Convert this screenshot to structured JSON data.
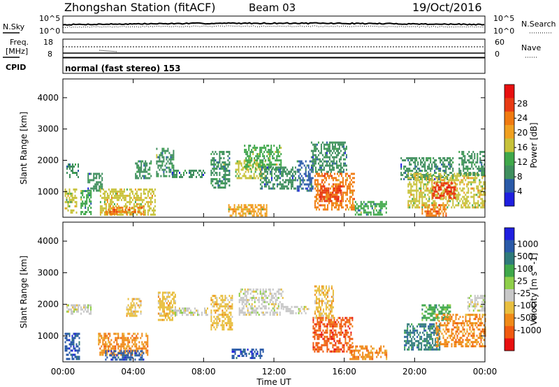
{
  "header": {
    "station": "Zhongshan Station (fitACF)",
    "beam": "Beam 03",
    "date": "19/Oct/2016"
  },
  "noise_panel": {
    "left_label": "N.Sky",
    "right_label": "N.Search",
    "left_ticks": [
      "10^5",
      "10^0"
    ],
    "right_ticks": [
      "10^5",
      "10^0"
    ]
  },
  "freq_panel": {
    "left_label_1": "Freq.",
    "left_label_2": "[MHz]",
    "left_ticks": [
      "18",
      "8"
    ],
    "right_label": "Nave",
    "right_ticks": [
      "60",
      "0"
    ]
  },
  "cpid_panel": {
    "label": "CPID",
    "mode_text": "normal (fast stereo) 153"
  },
  "colors": {
    "power": [
      "#1f1fe0",
      "#2a5aa8",
      "#3f8f5e",
      "#3fa84a",
      "#c7c23a",
      "#f0a020",
      "#f07a10",
      "#e83a14",
      "#e81010"
    ],
    "velocity": [
      "#e81010",
      "#f05a10",
      "#f08a18",
      "#e8bf40",
      "#c8c8c8",
      "#8fcf4a",
      "#3fa84a",
      "#2f7a7a",
      "#2a5aa8",
      "#1f1fe0"
    ]
  },
  "chart_data": [
    {
      "type": "heatmap",
      "title": "Power",
      "xlabel": "Time UT",
      "ylabel": "Slant Range [km]",
      "colorbar_label": "Power [dB]",
      "x_ticks": [
        "00:00",
        "04:00",
        "08:00",
        "12:00",
        "16:00",
        "20:00",
        "00:00"
      ],
      "y_ticks": [
        1000,
        2000,
        3000,
        4000
      ],
      "colorbar_ticks": [
        4,
        8,
        12,
        16,
        20,
        24,
        28
      ],
      "xlim_hours": [
        0,
        24
      ],
      "ylim_km": [
        180,
        4600
      ],
      "clim": [
        0,
        30
      ],
      "regions": [
        {
          "t0": 0.1,
          "t1": 0.8,
          "r0": 300,
          "r1": 1100,
          "v": 14
        },
        {
          "t0": 0.2,
          "t1": 0.9,
          "r0": 1450,
          "r1": 1900,
          "v": 8
        },
        {
          "t0": 1.0,
          "t1": 1.6,
          "r0": 280,
          "r1": 1050,
          "v": 10
        },
        {
          "t0": 1.4,
          "t1": 2.2,
          "r0": 1000,
          "r1": 1600,
          "v": 7
        },
        {
          "t0": 2.1,
          "t1": 5.2,
          "r0": 260,
          "r1": 1100,
          "v": 16
        },
        {
          "t0": 2.4,
          "t1": 4.6,
          "r0": 260,
          "r1": 520,
          "v": 22
        },
        {
          "t0": 4.1,
          "t1": 5.0,
          "r0": 1450,
          "r1": 2000,
          "v": 9
        },
        {
          "t0": 5.3,
          "t1": 6.3,
          "r0": 1500,
          "r1": 2400,
          "v": 9
        },
        {
          "t0": 6.2,
          "t1": 8.1,
          "r0": 1450,
          "r1": 1700,
          "v": 7
        },
        {
          "t0": 8.4,
          "t1": 9.5,
          "r0": 1100,
          "r1": 2300,
          "v": 9
        },
        {
          "t0": 9.4,
          "t1": 11.6,
          "r0": 250,
          "r1": 600,
          "v": 17
        },
        {
          "t0": 9.8,
          "t1": 11.5,
          "r0": 1450,
          "r1": 2000,
          "v": 14
        },
        {
          "t0": 10.3,
          "t1": 12.4,
          "r0": 1700,
          "r1": 2500,
          "v": 12
        },
        {
          "t0": 11.2,
          "t1": 13.2,
          "r0": 1100,
          "r1": 1800,
          "v": 7
        },
        {
          "t0": 13.3,
          "t1": 14.2,
          "r0": 1000,
          "r1": 2000,
          "v": 6
        },
        {
          "t0": 14.1,
          "t1": 16.1,
          "r0": 1600,
          "r1": 2600,
          "v": 8
        },
        {
          "t0": 14.3,
          "t1": 16.6,
          "r0": 400,
          "r1": 1600,
          "v": 20
        },
        {
          "t0": 14.6,
          "t1": 15.8,
          "r0": 700,
          "r1": 1200,
          "v": 26
        },
        {
          "t0": 16.6,
          "t1": 18.4,
          "r0": 250,
          "r1": 700,
          "v": 10
        },
        {
          "t0": 19.2,
          "t1": 22.2,
          "r0": 1400,
          "r1": 2100,
          "v": 8
        },
        {
          "t0": 19.6,
          "t1": 24.0,
          "r0": 500,
          "r1": 1600,
          "v": 16
        },
        {
          "t0": 21.0,
          "t1": 22.3,
          "r0": 800,
          "r1": 1300,
          "v": 26
        },
        {
          "t0": 22.5,
          "t1": 24.0,
          "r0": 1500,
          "r1": 2300,
          "v": 9
        },
        {
          "t0": 20.4,
          "t1": 21.8,
          "r0": 200,
          "r1": 600,
          "v": 22
        }
      ]
    },
    {
      "type": "heatmap",
      "title": "Velocity",
      "xlabel": "Time UT",
      "ylabel": "Slant Range [km]",
      "colorbar_label": "Velocity [m s^-1]",
      "x_ticks": [
        "00:00",
        "04:00",
        "08:00",
        "12:00",
        "16:00",
        "20:00",
        "00:00"
      ],
      "y_ticks": [
        1000,
        2000,
        3000,
        4000
      ],
      "colorbar_ticks": [
        "1000",
        "500",
        "100",
        "25",
        "-25",
        "-100",
        "-500",
        "-1000"
      ],
      "xlim_hours": [
        0,
        24
      ],
      "ylim_km": [
        180,
        4600
      ],
      "regions": [
        {
          "t0": 0.1,
          "t1": 0.9,
          "r0": 300,
          "r1": 1100,
          "v": 8
        },
        {
          "t0": 0.2,
          "t1": 1.6,
          "r0": 1700,
          "r1": 2000,
          "v": 4
        },
        {
          "t0": 2.0,
          "t1": 4.8,
          "r0": 400,
          "r1": 1100,
          "v": 2
        },
        {
          "t0": 2.4,
          "t1": 4.6,
          "r0": 250,
          "r1": 550,
          "v": 8
        },
        {
          "t0": 3.6,
          "t1": 4.4,
          "r0": 1650,
          "r1": 2200,
          "v": 3
        },
        {
          "t0": 5.4,
          "t1": 6.4,
          "r0": 1500,
          "r1": 2400,
          "v": 3
        },
        {
          "t0": 6.2,
          "t1": 8.2,
          "r0": 1650,
          "r1": 1900,
          "v": 4
        },
        {
          "t0": 8.4,
          "t1": 9.6,
          "r0": 1200,
          "r1": 2300,
          "v": 3
        },
        {
          "t0": 9.6,
          "t1": 11.4,
          "r0": 300,
          "r1": 600,
          "v": 8
        },
        {
          "t0": 10.0,
          "t1": 12.5,
          "r0": 1650,
          "r1": 2500,
          "v": 4
        },
        {
          "t0": 12.5,
          "t1": 14.0,
          "r0": 1700,
          "r1": 1950,
          "v": 4
        },
        {
          "t0": 14.2,
          "t1": 16.5,
          "r0": 500,
          "r1": 1600,
          "v": 1
        },
        {
          "t0": 14.3,
          "t1": 15.4,
          "r0": 1600,
          "r1": 2600,
          "v": 3
        },
        {
          "t0": 16.3,
          "t1": 18.4,
          "r0": 250,
          "r1": 700,
          "v": 2
        },
        {
          "t0": 19.4,
          "t1": 21.4,
          "r0": 600,
          "r1": 1400,
          "v": 7
        },
        {
          "t0": 20.4,
          "t1": 22.0,
          "r0": 1500,
          "r1": 2000,
          "v": 6
        },
        {
          "t0": 21.2,
          "t1": 24.0,
          "r0": 700,
          "r1": 1700,
          "v": 2
        },
        {
          "t0": 23.0,
          "t1": 24.0,
          "r0": 1800,
          "r1": 2300,
          "v": 4
        }
      ]
    }
  ]
}
